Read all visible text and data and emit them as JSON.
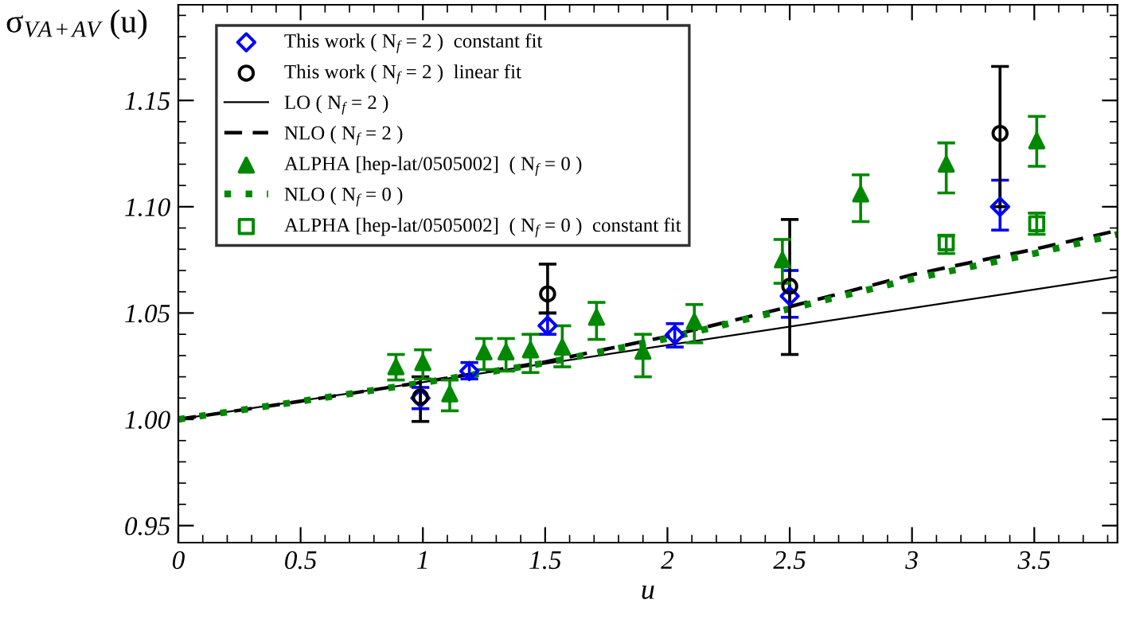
{
  "chart_data": {
    "type": "scatter",
    "xlabel": "u",
    "ylabel": "σ$_{VA+AV}$ (u)",
    "xlim": [
      0,
      3.84
    ],
    "ylim": [
      0.942,
      1.195
    ],
    "xticks": [
      0,
      0.5,
      1,
      1.5,
      2,
      2.5,
      3,
      3.5
    ],
    "yticks": [
      {
        "value": 0.95,
        "label": "0.95"
      },
      {
        "value": 1.0,
        "label": "1.00"
      },
      {
        "value": 1.05,
        "label": "1.05"
      },
      {
        "value": 1.1,
        "label": "1.10"
      },
      {
        "value": 1.15,
        "label": "1.15"
      }
    ],
    "legend": "top left",
    "grid": false,
    "series": [
      {
        "name": "This work ( N$_{f}$ = 2 )  constant fit",
        "marker": "diamond",
        "color": "#0000ff",
        "x": [
          0.99,
          1.19,
          1.51,
          2.03,
          2.5,
          3.36
        ],
        "values": [
          1.01,
          1.0227,
          1.044,
          1.0397,
          1.058,
          1.1
        ],
        "errors": [
          [
            1.005,
            1.015
          ],
          [
            1.019,
            1.0267
          ],
          [
            1.04,
            1.05
          ],
          [
            1.034,
            1.045
          ],
          [
            1.048,
            1.07
          ],
          [
            1.089,
            1.1125
          ]
        ]
      },
      {
        "name": "This work ( N$_{f}$ = 2 )  linear fit",
        "marker": "circle",
        "color": "#000000",
        "x": [
          0.99,
          1.51,
          2.5,
          3.36
        ],
        "values": [
          1.0105,
          1.059,
          1.0626,
          1.1345
        ],
        "errors": [
          [
            0.999,
            1.02
          ],
          [
            1.05,
            1.073
          ],
          [
            1.0305,
            1.094
          ],
          [
            1.1,
            1.166
          ]
        ]
      },
      {
        "name": "LO ( N$_{f}$ = 2 )",
        "type": "line",
        "line_style": "solid",
        "color": "#000000",
        "x": [
          0,
          3.84
        ],
        "values": [
          1.0,
          1.067
        ]
      },
      {
        "name": "NLO ( N$_{f}$ = 2 )",
        "type": "line",
        "line_style": "dashed",
        "color": "#000000",
        "x": [
          0,
          0.5,
          1,
          1.5,
          2,
          2.5,
          3,
          3.5,
          3.84
        ],
        "values": [
          1.0,
          1.0085,
          1.0175,
          1.027,
          1.039,
          1.053,
          1.068,
          1.08,
          1.0888
        ]
      },
      {
        "name": "ALPHA [hep-lat/0505002]  ( N$_{f}$ = 0 )",
        "marker": "triangle",
        "color": "#008800",
        "x": [
          0.89,
          1.0,
          1.11,
          1.25,
          1.34,
          1.44,
          1.57,
          1.71,
          1.9,
          2.11,
          2.47,
          2.79,
          3.14,
          3.51
        ],
        "values": [
          1.0247,
          1.0267,
          1.012,
          1.0317,
          1.0317,
          1.0327,
          1.034,
          1.048,
          1.032,
          1.046,
          1.075,
          1.106,
          1.12,
          1.131
        ],
        "errors": [
          [
            1.0185,
            1.0305
          ],
          [
            1.019,
            1.0327
          ],
          [
            1.004,
            1.0185
          ],
          [
            1.0234,
            1.038
          ],
          [
            1.0227,
            1.038
          ],
          [
            1.022,
            1.04
          ],
          [
            1.0247,
            1.044
          ],
          [
            1.0376,
            1.055
          ],
          [
            1.02,
            1.04
          ],
          [
            1.036,
            1.054
          ],
          [
            1.064,
            1.0846
          ],
          [
            1.093,
            1.115
          ],
          [
            1.1065,
            1.13
          ],
          [
            1.119,
            1.1425
          ]
        ]
      },
      {
        "name": "NLO ( N$_{f}$ = 0 )",
        "type": "line",
        "line_style": "dotted",
        "color": "#008800",
        "x": [
          0,
          0.5,
          1,
          1.5,
          2,
          2.5,
          3,
          3.5,
          3.84
        ],
        "values": [
          1.0,
          1.0085,
          1.0172,
          1.0265,
          1.038,
          1.052,
          1.066,
          1.078,
          1.087
        ]
      },
      {
        "name": "ALPHA [hep-lat/0505002]  ( N$_{f}$ = 0 )  constant fit",
        "marker": "square",
        "color": "#008800",
        "x": [
          3.14,
          3.51
        ],
        "values": [
          1.083,
          1.092
        ],
        "errors": [
          [
            1.078,
            1.0866
          ],
          [
            1.087,
            1.097
          ]
        ]
      }
    ]
  }
}
